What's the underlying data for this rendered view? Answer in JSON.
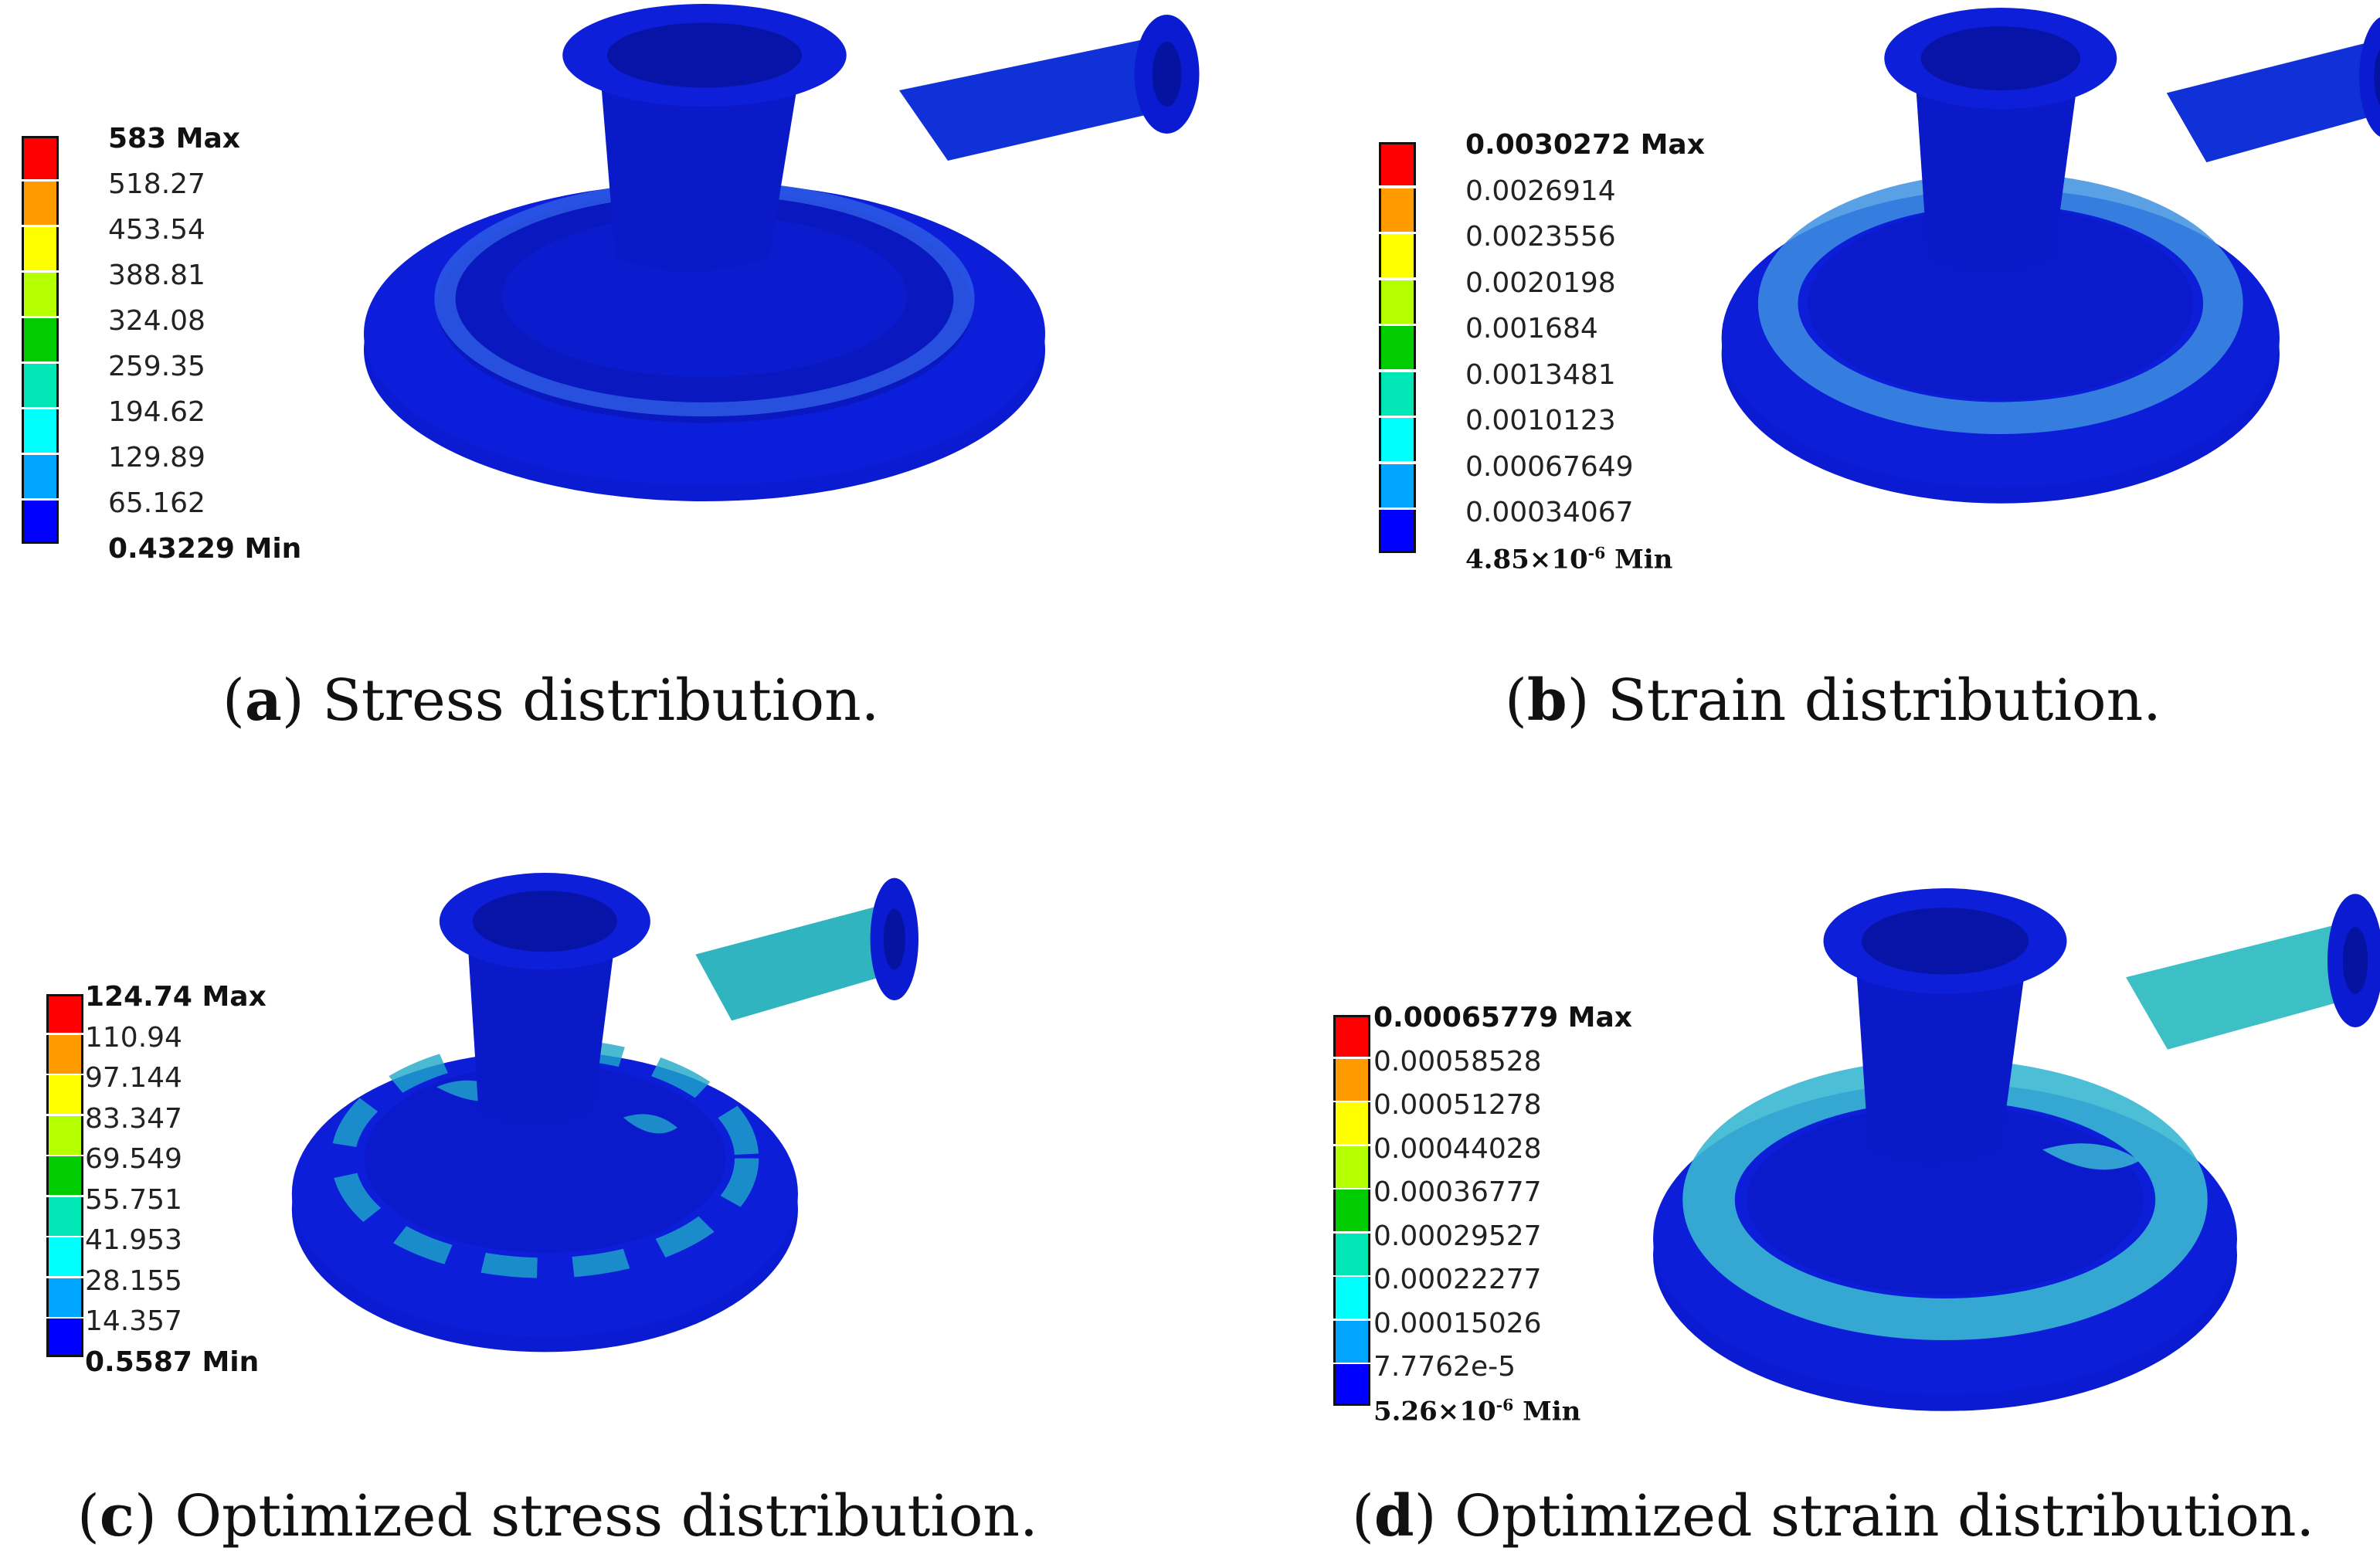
{
  "panels": [
    {
      "letter": "a",
      "caption": "Stress distribution.",
      "legend": {
        "labels": [
          "583 Max",
          "518.27",
          "453.54",
          "388.81",
          "324.08",
          "259.35",
          "194.62",
          "129.89",
          "65.162",
          "0.43229 Min"
        ],
        "colors": [
          "#ff0000",
          "#ff9b00",
          "#ffff00",
          "#b4ff00",
          "#00cc00",
          "#00e6b4",
          "#00ffff",
          "#00a5ff",
          "#0000ff"
        ]
      }
    },
    {
      "letter": "b",
      "caption": "Strain distribution.",
      "legend": {
        "labels": [
          "0.0030272 Max",
          "0.0026914",
          "0.0023556",
          "0.0020198",
          "0.001684",
          "0.0013481",
          "0.0010123",
          "0.00067649",
          "0.00034067",
          "4.85×10-6 Min"
        ],
        "colors": [
          "#ff0000",
          "#ff9b00",
          "#ffff00",
          "#b4ff00",
          "#00cc00",
          "#00e6b4",
          "#00ffff",
          "#00a5ff",
          "#0000ff"
        ]
      }
    },
    {
      "letter": "c",
      "caption": "Optimized stress distribution.",
      "legend": {
        "labels": [
          "124.74 Max",
          "110.94",
          "97.144",
          "83.347",
          "69.549",
          "55.751",
          "41.953",
          "28.155",
          "14.357",
          "0.5587 Min"
        ],
        "colors": [
          "#ff0000",
          "#ff9b00",
          "#ffff00",
          "#b4ff00",
          "#00cc00",
          "#00e6b4",
          "#00ffff",
          "#00a5ff",
          "#0000ff"
        ]
      }
    },
    {
      "letter": "d",
      "caption": "Optimized strain distribution.",
      "legend": {
        "labels": [
          "0.00065779 Max",
          "0.00058528",
          "0.00051278",
          "0.00044028",
          "0.00036777",
          "0.00029527",
          "0.00022277",
          "0.00015026",
          "7.7762e-5",
          "5.26×10-6 Min"
        ],
        "colors": [
          "#ff0000",
          "#ff9b00",
          "#ffff00",
          "#b4ff00",
          "#00cc00",
          "#00e6b4",
          "#00ffff",
          "#00a5ff",
          "#0000ff"
        ]
      }
    }
  ]
}
